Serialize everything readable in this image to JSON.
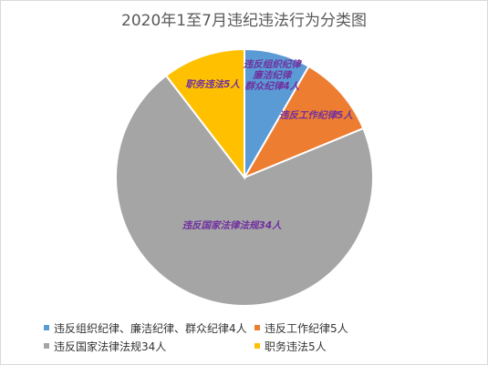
{
  "chart_data": {
    "type": "pie",
    "title": "2020年1至7月违纪违法行为分类图",
    "categories": [
      "违反组织纪律、廉洁纪律、群众纪律",
      "违反工作纪律",
      "违反国家法律法规",
      "职务违法"
    ],
    "values": [
      4,
      5,
      34,
      5
    ],
    "unit": "人",
    "colors": [
      "#5B9BD5",
      "#ED7D31",
      "#A5A5A5",
      "#FFC000"
    ],
    "data_labels": [
      [
        "违反组织纪律",
        "廉洁纪律",
        "群众纪律4人"
      ],
      [
        "违反工作纪律5人"
      ],
      [
        "违反国家法律法规34人"
      ],
      [
        "职务违法5人"
      ]
    ],
    "legend": [
      "违反组织纪律、廉洁纪律、群众纪律4人",
      "违反工作纪律5人",
      "违反国家法律法规34人",
      "职务违法5人"
    ],
    "legend_position": "bottom"
  }
}
